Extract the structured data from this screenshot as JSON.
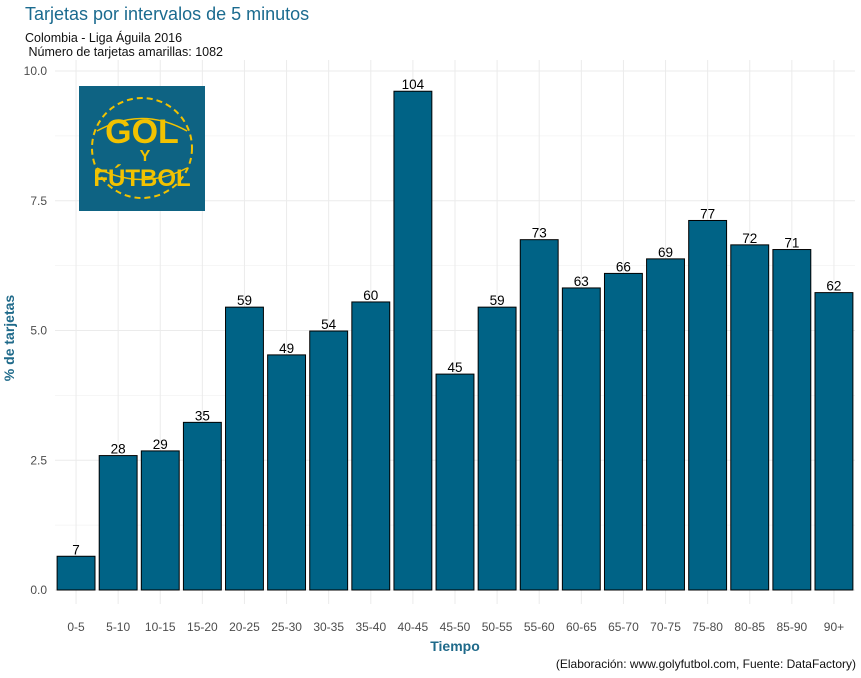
{
  "chart_data": {
    "type": "bar",
    "title": "Tarjetas por intervalos de 5 minutos",
    "subtitle_lines": [
      "Colombia - Liga Águila 2016",
      " Número de tarjetas amarillas: 1082"
    ],
    "xlabel": "Tiempo",
    "ylabel": "% de tarjetas",
    "caption": "(Elaboración: www.golyfutbol.com, Fuente: DataFactory)",
    "ylim": [
      0,
      10
    ],
    "y_ticks": [
      "0.0",
      "2.5",
      "5.0",
      "7.5",
      "10.0"
    ],
    "y_tick_values": [
      0,
      2.5,
      5,
      7.5,
      10
    ],
    "categories": [
      "0-5",
      "5-10",
      "10-15",
      "15-20",
      "20-25",
      "25-30",
      "30-35",
      "35-40",
      "40-45",
      "45-50",
      "50-55",
      "55-60",
      "60-65",
      "65-70",
      "70-75",
      "75-80",
      "80-85",
      "85-90",
      "90+"
    ],
    "counts": [
      7,
      28,
      29,
      35,
      59,
      49,
      54,
      60,
      104,
      45,
      59,
      73,
      63,
      66,
      69,
      77,
      72,
      71,
      62
    ],
    "values": [
      0.65,
      2.59,
      2.68,
      3.23,
      5.45,
      4.53,
      4.99,
      5.55,
      9.61,
      4.16,
      5.45,
      6.75,
      5.82,
      6.1,
      6.38,
      7.12,
      6.65,
      6.56,
      5.73
    ],
    "grid": true
  },
  "logo": {
    "text_top": "GOL",
    "text_mid": "Y",
    "text_bottom": "FÚTBOL"
  },
  "colors": {
    "bar": "#006386",
    "bar_outline": "#000000",
    "title": "#1b6b8f",
    "axis_title": "#1f6a8a",
    "logo_bg": "#0e6383",
    "logo_text": "#f2c200",
    "grid": "#ebebeb"
  }
}
